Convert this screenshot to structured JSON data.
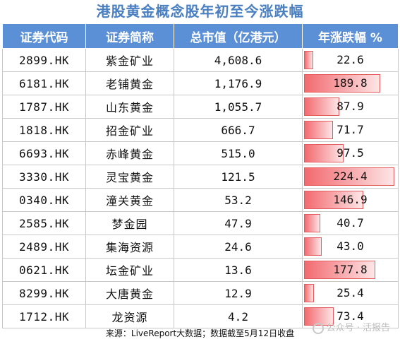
{
  "title": "港股黄金概念股年初至今涨跌幅",
  "columns": [
    "证券代码",
    "证券简称",
    "总市值（亿港元）",
    "年涨跌幅  %"
  ],
  "rows": [
    {
      "code": "2899.HK",
      "name": "紫金矿业",
      "market_cap": "4,608.6",
      "change": "22.6"
    },
    {
      "code": "6181.HK",
      "name": "老铺黄金",
      "market_cap": "1,176.9",
      "change": "189.8"
    },
    {
      "code": "1787.HK",
      "name": "山东黄金",
      "market_cap": "1,055.7",
      "change": "87.9"
    },
    {
      "code": "1818.HK",
      "name": "招金矿业",
      "market_cap": "666.7",
      "change": "71.7"
    },
    {
      "code": "6693.HK",
      "name": "赤峰黄金",
      "market_cap": "515.0",
      "change": "97.5"
    },
    {
      "code": "3330.HK",
      "name": "灵宝黄金",
      "market_cap": "121.5",
      "change": "224.4"
    },
    {
      "code": "0340.HK",
      "name": "潼关黄金",
      "market_cap": "53.2",
      "change": "146.9"
    },
    {
      "code": "2585.HK",
      "name": "梦金园",
      "market_cap": "47.9",
      "change": "40.7"
    },
    {
      "code": "2489.HK",
      "name": "集海资源",
      "market_cap": "24.6",
      "change": "43.0"
    },
    {
      "code": "0621.HK",
      "name": "坛金矿业",
      "market_cap": "13.6",
      "change": "177.8"
    },
    {
      "code": "8299.HK",
      "name": "大唐黄金",
      "market_cap": "12.9",
      "change": "25.4"
    },
    {
      "code": "1712.HK",
      "name": "龙资源",
      "market_cap": "4.2",
      "change": "73.4"
    }
  ],
  "footer": "来源：LiveReport大数据；数据截至5月12日收盘",
  "watermark": "公众号 · 活报告",
  "colors": {
    "header_bg": "#5b8fd6",
    "title": "#4a7fc1",
    "bar": "#f26a6f"
  }
}
